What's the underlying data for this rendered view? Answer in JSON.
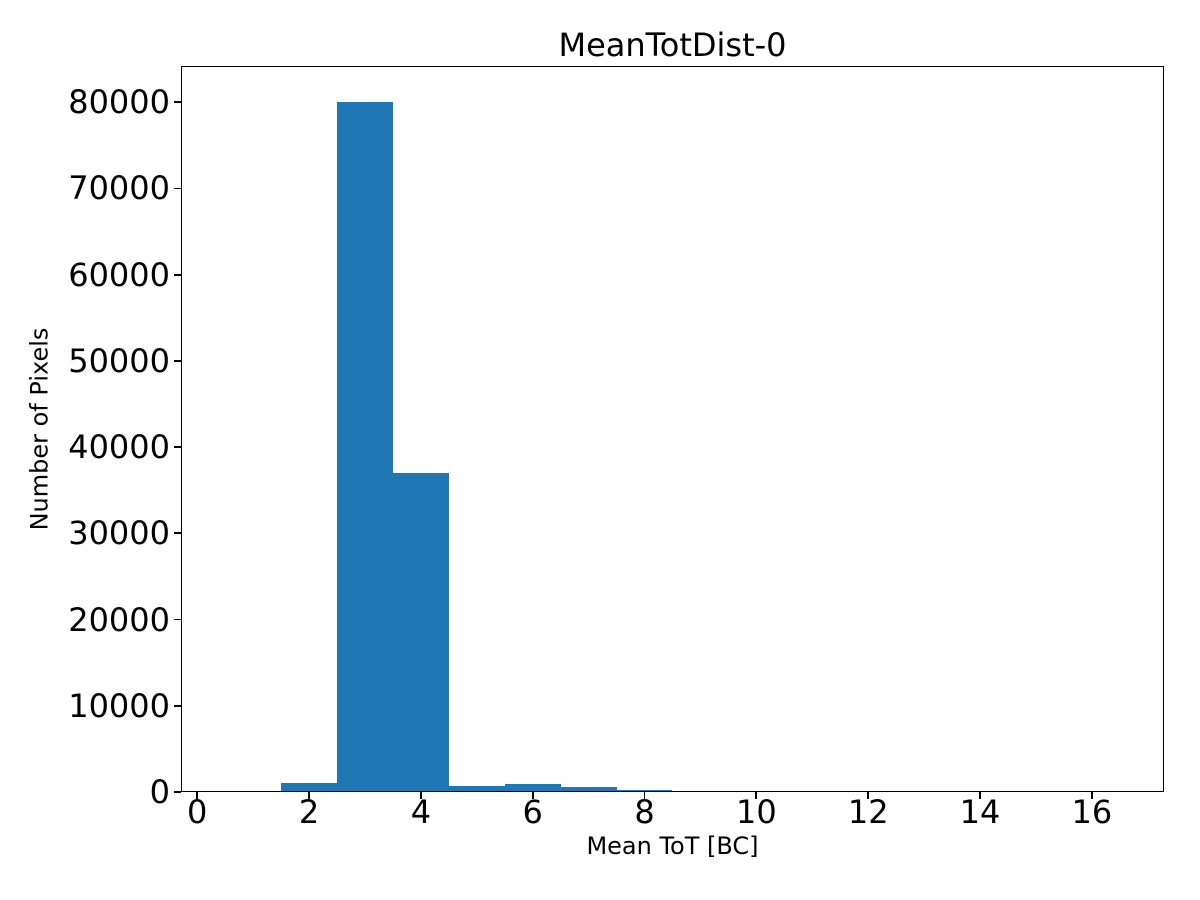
{
  "chart_data": {
    "type": "bar",
    "subtype": "histogram",
    "title": "MeanTotDist-0",
    "xlabel": "Mean ToT [BC]",
    "ylabel": "Number of Pixels",
    "bar_color": "#1f77b4",
    "axis_color": "#000000",
    "background_color": "#ffffff",
    "grid": false,
    "legend": "none",
    "xlim": [
      -0.29,
      17.29
    ],
    "ylim": [
      0,
      84200
    ],
    "bin_edges": [
      0.5,
      1.5,
      2.5,
      3.5,
      4.5,
      5.5,
      6.5,
      7.5,
      8.5,
      9.5,
      10.5,
      11.5,
      12.5,
      13.5,
      14.5,
      15.5,
      16.5
    ],
    "counts": [
      0,
      1000,
      80000,
      37000,
      700,
      900,
      550,
      250,
      0,
      0,
      0,
      0,
      0,
      0,
      0,
      0
    ],
    "xticks": {
      "values": [
        0,
        2,
        4,
        6,
        8,
        10,
        12,
        14,
        16
      ],
      "labels": [
        "0",
        "2",
        "4",
        "6",
        "8",
        "10",
        "12",
        "14",
        "16"
      ]
    },
    "yticks": {
      "values": [
        0,
        10000,
        20000,
        30000,
        40000,
        50000,
        60000,
        70000,
        80000
      ],
      "labels": [
        "0",
        "10000",
        "20000",
        "30000",
        "40000",
        "50000",
        "60000",
        "70000",
        "80000"
      ]
    }
  }
}
